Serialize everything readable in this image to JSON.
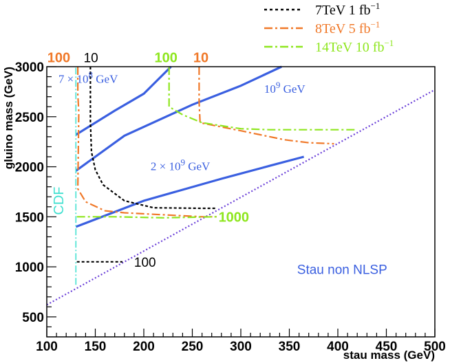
{
  "chart_data": {
    "type": "line",
    "xlabel": "stau mass (GeV)",
    "ylabel": "gluino mass (GeV)",
    "xlim": [
      100,
      500
    ],
    "ylim": [
      300,
      3000
    ],
    "x_ticks": [
      100,
      150,
      200,
      250,
      300,
      350,
      400,
      450,
      500
    ],
    "y_ticks": [
      500,
      1000,
      1500,
      2000,
      2500,
      3000
    ],
    "grid": false,
    "legend_position": "top-right",
    "legend": [
      {
        "label": "7TeV 1 fb",
        "sup": "−1",
        "color": "#000000",
        "dash": "4,4"
      },
      {
        "label": "8TeV 5 fb",
        "sup": "−1",
        "color": "#f07828",
        "dash": "12,4,3,4"
      },
      {
        "label": "14TeV 10 fb",
        "sup": "−1",
        "color": "#8ee61e",
        "dash": "12,4,3,4"
      }
    ],
    "colors": {
      "reheating": "#3a5fe0",
      "non_nlsp": "#6a3fd8",
      "cdf": "#40e0d0",
      "tev7": "#000000",
      "tev8": "#f07828",
      "tev14": "#8ee61e"
    },
    "series": [
      {
        "name": "7 × 10^8 GeV",
        "group": "reheating",
        "points": [
          [
            130,
            2320
          ],
          [
            170,
            2560
          ],
          [
            200,
            2730
          ],
          [
            228,
            3000
          ]
        ]
      },
      {
        "name": "10^9 GeV",
        "group": "reheating",
        "points": [
          [
            130,
            1960
          ],
          [
            180,
            2310
          ],
          [
            250,
            2620
          ],
          [
            300,
            2810
          ],
          [
            342,
            3000
          ]
        ]
      },
      {
        "name": "2 × 10^9 GeV",
        "group": "reheating",
        "points": [
          [
            130,
            1400
          ],
          [
            200,
            1660
          ],
          [
            280,
            1880
          ],
          [
            330,
            2010
          ],
          [
            365,
            2100
          ]
        ]
      },
      {
        "name": "Stau non NLSP",
        "group": "non_nlsp",
        "points": [
          [
            100,
            620
          ],
          [
            500,
            2770
          ]
        ]
      },
      {
        "name": "CDF",
        "group": "cdf",
        "points": [
          [
            130,
            820
          ],
          [
            130,
            2990
          ]
        ]
      },
      {
        "name": "7TeV 10",
        "group": "tev7",
        "points": [
          [
            145,
            3000
          ],
          [
            145,
            2450
          ],
          [
            146,
            2150
          ],
          [
            150,
            1970
          ],
          [
            158,
            1820
          ],
          [
            180,
            1660
          ],
          [
            210,
            1590
          ],
          [
            260,
            1585
          ],
          [
            275,
            1585
          ]
        ]
      },
      {
        "name": "7TeV 100",
        "group": "tev7",
        "points": [
          [
            131,
            1050
          ],
          [
            178,
            1050
          ]
        ]
      },
      {
        "name": "8TeV 100",
        "group": "tev8",
        "points": [
          [
            132,
            3000
          ],
          [
            132,
            2720
          ],
          [
            133,
            2550
          ],
          [
            132,
            1780
          ],
          [
            140,
            1650
          ],
          [
            160,
            1560
          ],
          [
            180,
            1540
          ],
          [
            220,
            1520
          ],
          [
            260,
            1500
          ],
          [
            275,
            1500
          ]
        ]
      },
      {
        "name": "8TeV 10",
        "group": "tev8",
        "points": [
          [
            257,
            3000
          ],
          [
            257,
            2640
          ],
          [
            258,
            2440
          ],
          [
            300,
            2360
          ],
          [
            320,
            2320
          ],
          [
            345,
            2270
          ],
          [
            370,
            2240
          ],
          [
            396,
            2230
          ]
        ]
      },
      {
        "name": "14TeV 100",
        "group": "tev14",
        "points": [
          [
            226,
            3000
          ],
          [
            226,
            2600
          ],
          [
            240,
            2520
          ],
          [
            260,
            2440
          ],
          [
            300,
            2380
          ],
          [
            330,
            2370
          ],
          [
            420,
            2370
          ]
        ]
      },
      {
        "name": "14TeV 1000",
        "group": "tev14",
        "points": [
          [
            131,
            1500
          ],
          [
            170,
            1500
          ],
          [
            220,
            1490
          ],
          [
            275,
            1500
          ]
        ]
      }
    ],
    "annotations": [
      {
        "text": "100",
        "x": 100.5,
        "y": 3044,
        "cls": "ann-bold",
        "color": "#f07828"
      },
      {
        "text": "10",
        "x": 138,
        "y": 3044,
        "cls": "ann-sans",
        "color": "#000000"
      },
      {
        "text": "100",
        "x": 211,
        "y": 3044,
        "cls": "ann-bold",
        "color": "#8ee61e"
      },
      {
        "text": "10",
        "x": 251,
        "y": 3044,
        "cls": "ann-bold",
        "color": "#f07828"
      },
      {
        "text": "7 × 10",
        "sup": "8",
        "after": " GeV",
        "x": 112,
        "y": 2840,
        "cls": "ann-serif",
        "color": "#3a5fe0"
      },
      {
        "text": "10",
        "sup": "9",
        "after": " GeV",
        "x": 324,
        "y": 2740,
        "cls": "ann-serif",
        "color": "#3a5fe0"
      },
      {
        "text": "2 × 10",
        "sup": "9",
        "after": " GeV",
        "x": 207,
        "y": 1965,
        "cls": "ann-serif",
        "color": "#3a5fe0"
      },
      {
        "text": "1000",
        "x": 277,
        "y": 1450,
        "cls": "ann-bold",
        "color": "#8ee61e"
      },
      {
        "text": "100",
        "x": 190,
        "y": 1000,
        "cls": "ann-sans",
        "color": "#000000"
      },
      {
        "text": "Stau non NLSP",
        "x": 358,
        "y": 930,
        "cls": "ann-sans",
        "color": "#3a5fe0"
      }
    ],
    "cdf_label": {
      "text": "CDF",
      "x": 117,
      "y": 1660,
      "color": "#40e0d0"
    }
  }
}
